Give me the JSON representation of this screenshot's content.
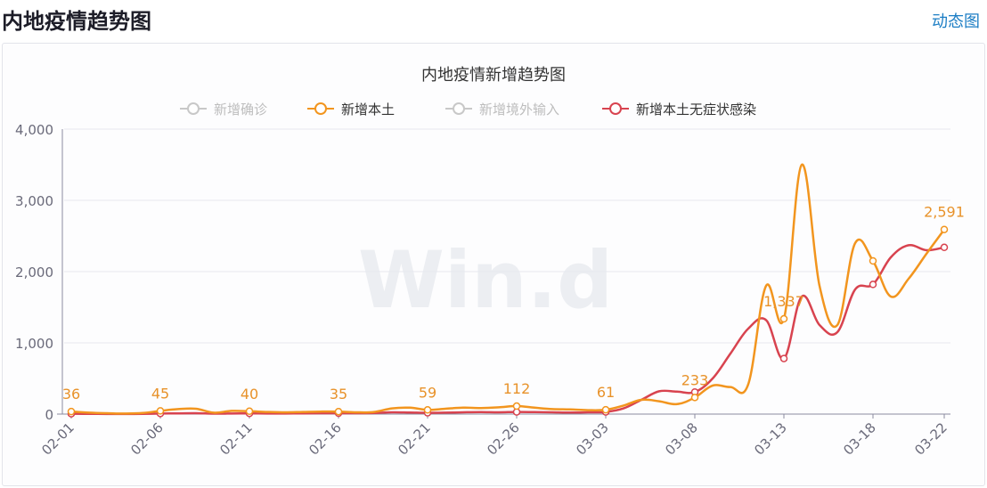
{
  "header": {
    "title": "内地疫情趋势图",
    "dynamic_link": "动态图"
  },
  "watermark": "Win.d",
  "colors": {
    "local": "#f2951e",
    "asymptomatic": "#d8434f",
    "inactive": "#c8c8c8",
    "link": "#1b7dc4",
    "axis": "#8a8aa0",
    "grid": "#e6e8ef"
  },
  "chart_data": {
    "type": "line",
    "title": "内地疫情新增趋势图",
    "xlabel": "",
    "ylabel": "",
    "ylim": [
      0,
      4000
    ],
    "yticks": [
      "0",
      "1,000",
      "2,000",
      "3,000",
      "4,000"
    ],
    "xticks": [
      "02-01",
      "02-06",
      "02-11",
      "02-16",
      "02-21",
      "02-26",
      "03-03",
      "03-08",
      "03-13",
      "03-18",
      "03-22"
    ],
    "grid": true,
    "legend_position": "top",
    "legend": [
      {
        "name": "新增确诊",
        "active": false
      },
      {
        "name": "新增本土",
        "active": true
      },
      {
        "name": "新增境外输入",
        "active": false
      },
      {
        "name": "新增本土无症状感染",
        "active": true
      }
    ],
    "x": [
      "02-01",
      "02-02",
      "02-03",
      "02-04",
      "02-05",
      "02-06",
      "02-07",
      "02-08",
      "02-09",
      "02-10",
      "02-11",
      "02-12",
      "02-13",
      "02-14",
      "02-15",
      "02-16",
      "02-17",
      "02-18",
      "02-19",
      "02-20",
      "02-21",
      "02-22",
      "02-23",
      "02-24",
      "02-25",
      "02-26",
      "02-27",
      "02-28",
      "03-01",
      "03-02",
      "03-03",
      "03-04",
      "03-05",
      "03-06",
      "03-07",
      "03-08",
      "03-09",
      "03-10",
      "03-11",
      "03-12",
      "03-13",
      "03-14",
      "03-15",
      "03-16",
      "03-17",
      "03-18",
      "03-19",
      "03-20",
      "03-21",
      "03-22"
    ],
    "series": [
      {
        "name": "新增本土",
        "values": [
          36,
          20,
          12,
          8,
          15,
          45,
          70,
          75,
          20,
          45,
          40,
          30,
          25,
          30,
          35,
          35,
          25,
          30,
          80,
          90,
          59,
          75,
          90,
          85,
          95,
          112,
          90,
          70,
          65,
          55,
          61,
          120,
          200,
          180,
          140,
          233,
          400,
          380,
          420,
          1800,
          1337,
          3500,
          1800,
          1250,
          2400,
          2150,
          1650,
          1900,
          2250,
          2591
        ]
      },
      {
        "name": "新增本土无症状感染",
        "values": [
          5,
          3,
          2,
          2,
          3,
          8,
          10,
          12,
          6,
          8,
          10,
          8,
          8,
          10,
          12,
          12,
          12,
          15,
          25,
          22,
          18,
          20,
          25,
          28,
          25,
          30,
          28,
          25,
          22,
          25,
          30,
          80,
          200,
          320,
          315,
          310,
          500,
          850,
          1200,
          1320,
          780,
          1650,
          1250,
          1150,
          1750,
          1820,
          2200,
          2370,
          2300,
          2340
        ]
      }
    ],
    "data_labels": [
      {
        "date": "02-01",
        "label": "36"
      },
      {
        "date": "02-06",
        "label": "45"
      },
      {
        "date": "02-11",
        "label": "40"
      },
      {
        "date": "02-16",
        "label": "35"
      },
      {
        "date": "02-21",
        "label": "59"
      },
      {
        "date": "02-26",
        "label": "112"
      },
      {
        "date": "03-03",
        "label": "61"
      },
      {
        "date": "03-08",
        "label": "233"
      },
      {
        "date": "03-13",
        "label": "1,337"
      },
      {
        "date": "03-22",
        "label": "2,591"
      }
    ]
  }
}
